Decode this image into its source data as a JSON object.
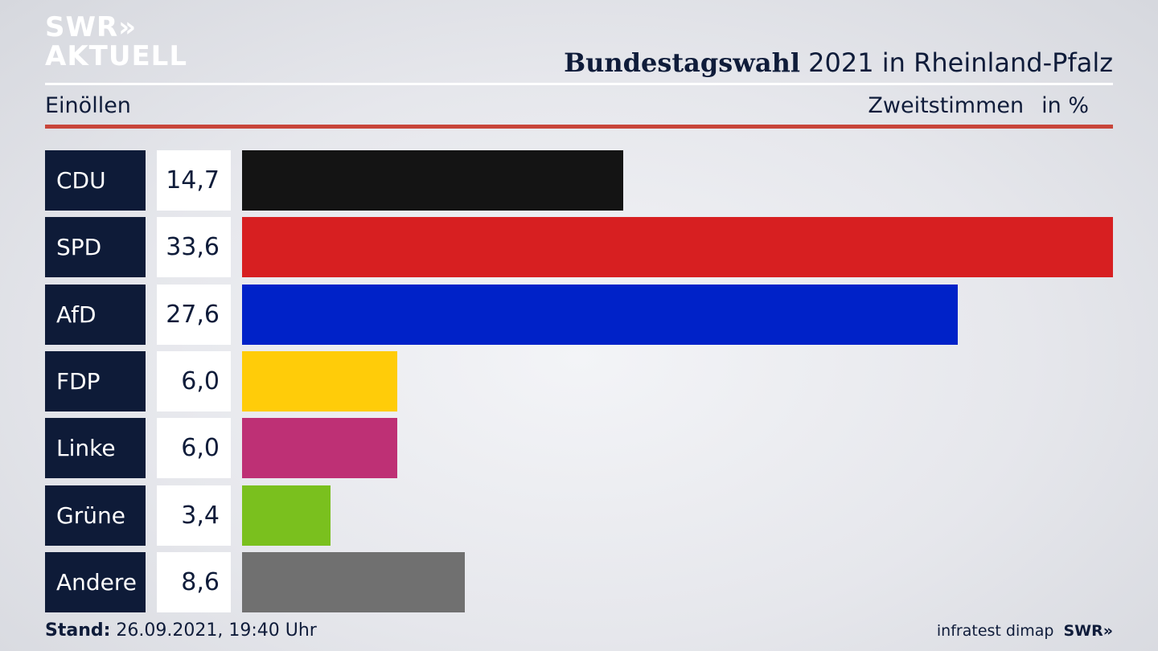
{
  "logo": {
    "line1": "SWR»",
    "line2": "AKTUELL"
  },
  "title": {
    "bold": "Bundestagswahl",
    "rest": " 2021 in Rheinland-Pfalz"
  },
  "region": "Einöllen",
  "vote_type": "Zweitstimmen",
  "unit": "in %",
  "chart_data": {
    "type": "bar",
    "orientation": "horizontal",
    "title": "Bundestagswahl 2021 in Rheinland-Pfalz",
    "subtitle": "Einöllen",
    "categories": [
      "CDU",
      "SPD",
      "AfD",
      "FDP",
      "Linke",
      "Grüne",
      "Andere"
    ],
    "values": [
      14.7,
      33.6,
      27.6,
      6.0,
      6.0,
      3.4,
      8.6
    ],
    "value_labels": [
      "14,7",
      "33,6",
      "27,6",
      "6,0",
      "6,0",
      "3,4",
      "8,6"
    ],
    "colors": [
      "#141414",
      "#d71f21",
      "#0022c8",
      "#ffcc09",
      "#be3075",
      "#7ac01e",
      "#707070"
    ],
    "xlim": [
      0,
      33.6
    ],
    "grid": false
  },
  "footer": {
    "stand_label": "Stand:",
    "stand_value": " 26.09.2021, 19:40 Uhr",
    "source": "infratest dimap",
    "brand": "SWR»"
  }
}
